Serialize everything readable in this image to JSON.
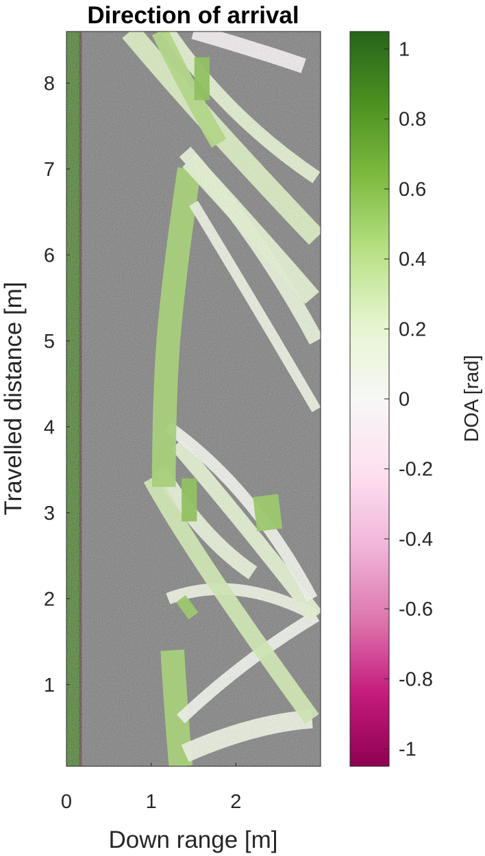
{
  "chart_data": {
    "type": "heatmap",
    "title": "Direction of arrival",
    "xlabel": "Down range [m]",
    "ylabel": "Travelled distance [m]",
    "xlim": [
      0,
      3
    ],
    "ylim": [
      0.05,
      8.6
    ],
    "x_ticks": [
      {
        "value": 0,
        "label": "0"
      },
      {
        "value": 1,
        "label": "1"
      },
      {
        "value": 2,
        "label": "2"
      }
    ],
    "y_ticks": [
      {
        "value": 1,
        "label": "1"
      },
      {
        "value": 2,
        "label": "2"
      },
      {
        "value": 3,
        "label": "3"
      },
      {
        "value": 4,
        "label": "4"
      },
      {
        "value": 5,
        "label": "5"
      },
      {
        "value": 6,
        "label": "6"
      },
      {
        "value": 7,
        "label": "7"
      },
      {
        "value": 8,
        "label": "8"
      }
    ],
    "colorbar": {
      "label": "DOA [rad]",
      "range": [
        -1.05,
        1.05
      ],
      "ticks": [
        {
          "value": 1,
          "label": "1"
        },
        {
          "value": 0.8,
          "label": "0.8"
        },
        {
          "value": 0.6,
          "label": "0.6"
        },
        {
          "value": 0.4,
          "label": "0.4"
        },
        {
          "value": 0.2,
          "label": "0.2"
        },
        {
          "value": 0,
          "label": "0"
        },
        {
          "value": -0.2,
          "label": "-0.2"
        },
        {
          "value": -0.4,
          "label": "-0.4"
        },
        {
          "value": -0.6,
          "label": "-0.6"
        },
        {
          "value": -0.8,
          "label": "-0.8"
        },
        {
          "value": -1,
          "label": "-1"
        }
      ],
      "colors": [
        "#8e0152",
        "#c51b7d",
        "#de77ae",
        "#f1b6da",
        "#fde0ef",
        "#f7f7f7",
        "#e6f5d0",
        "#b8e186",
        "#7fbc41",
        "#4d9221",
        "#276419"
      ]
    },
    "background_color": "#808080",
    "tracks": [
      {
        "label": "",
        "doa": 0.5,
        "width": 0.28,
        "points": [
          [
            1.35,
            0.05
          ],
          [
            1.3,
            0.6
          ],
          [
            1.25,
            1.4
          ]
        ]
      },
      {
        "label": "",
        "doa": 0.1,
        "width": 0.22,
        "points": [
          [
            1.4,
            0.2
          ],
          [
            2.2,
            0.55
          ],
          [
            2.9,
            0.6
          ]
        ]
      },
      {
        "label": "",
        "doa": 0.05,
        "width": 0.14,
        "points": [
          [
            1.35,
            0.6
          ],
          [
            2.1,
            1.3
          ],
          [
            2.95,
            1.8
          ]
        ]
      },
      {
        "label": "",
        "doa": 0.1,
        "width": 0.14,
        "points": [
          [
            1.2,
            2.0
          ],
          [
            2.0,
            2.3
          ],
          [
            2.95,
            1.8
          ]
        ]
      },
      {
        "label": "",
        "doa": 0.15,
        "width": 0.18,
        "points": [
          [
            1.1,
            3.5
          ],
          [
            1.6,
            2.7
          ],
          [
            2.2,
            2.3
          ]
        ]
      },
      {
        "label": "",
        "doa": 0.3,
        "width": 0.2,
        "points": [
          [
            1.0,
            3.4
          ],
          [
            1.5,
            2.5
          ],
          [
            2.9,
            0.6
          ]
        ]
      },
      {
        "label": "",
        "doa": 0.2,
        "width": 0.18,
        "points": [
          [
            1.3,
            3.8
          ],
          [
            2.0,
            3.0
          ],
          [
            2.95,
            1.8
          ]
        ]
      },
      {
        "label": "",
        "doa": 0.05,
        "width": 0.14,
        "points": [
          [
            1.2,
            4.0
          ],
          [
            2.2,
            3.3
          ],
          [
            2.9,
            2.0
          ]
        ]
      },
      {
        "label": "",
        "doa": 0.5,
        "width": 0.28,
        "points": [
          [
            1.15,
            3.3
          ],
          [
            1.15,
            4.5
          ],
          [
            1.3,
            6.0
          ],
          [
            1.45,
            7.0
          ]
        ]
      },
      {
        "label": "",
        "doa": 0.1,
        "width": 0.12,
        "points": [
          [
            1.5,
            6.6
          ],
          [
            2.3,
            5.3
          ],
          [
            2.95,
            4.2
          ]
        ]
      },
      {
        "label": "",
        "doa": 0.15,
        "width": 0.18,
        "points": [
          [
            1.4,
            7.2
          ],
          [
            2.3,
            6.2
          ],
          [
            2.95,
            5.0
          ]
        ]
      },
      {
        "label": "",
        "doa": 0.2,
        "width": 0.22,
        "points": [
          [
            1.45,
            7.1
          ],
          [
            2.2,
            6.3
          ],
          [
            2.9,
            5.5
          ]
        ]
      },
      {
        "label": "",
        "doa": 0.25,
        "width": 0.24,
        "points": [
          [
            0.75,
            8.6
          ],
          [
            1.6,
            7.6
          ],
          [
            2.95,
            6.2
          ]
        ]
      },
      {
        "label": "",
        "doa": 0.2,
        "width": 0.16,
        "points": [
          [
            1.2,
            8.6
          ],
          [
            1.9,
            7.6
          ],
          [
            2.95,
            6.9
          ]
        ]
      },
      {
        "label": "",
        "doa": 0.45,
        "width": 0.2,
        "points": [
          [
            1.1,
            8.6
          ],
          [
            1.5,
            7.8
          ],
          [
            1.8,
            7.3
          ]
        ]
      },
      {
        "label": "",
        "doa": -0.05,
        "width": 0.18,
        "points": [
          [
            1.5,
            8.6
          ],
          [
            2.2,
            8.4
          ],
          [
            2.8,
            8.2
          ]
        ]
      },
      {
        "label": "",
        "doa": 0.6,
        "width": 0.18,
        "points": [
          [
            1.6,
            8.3
          ],
          [
            1.6,
            7.8
          ]
        ]
      },
      {
        "label": "",
        "doa": 0.55,
        "width": 0.3,
        "points": [
          [
            2.35,
            3.2
          ],
          [
            2.4,
            2.8
          ]
        ]
      },
      {
        "label": "",
        "doa": 0.6,
        "width": 0.18,
        "points": [
          [
            1.45,
            3.4
          ],
          [
            1.45,
            2.9
          ]
        ]
      },
      {
        "label": "",
        "doa": 0.55,
        "width": 0.14,
        "points": [
          [
            1.35,
            2.0
          ],
          [
            1.5,
            1.8
          ]
        ]
      }
    ],
    "left_band": {
      "x_range": [
        0.0,
        0.18
      ],
      "doa": 0.9
    }
  }
}
